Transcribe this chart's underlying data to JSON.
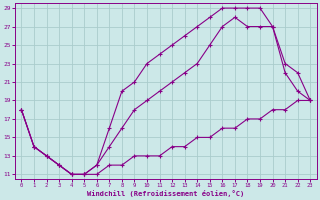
{
  "title": "",
  "xlabel": "Windchill (Refroidissement éolien,°C)",
  "ylabel": "",
  "bg_color": "#cce8e8",
  "grid_color": "#aacccc",
  "line_color": "#880088",
  "xlim": [
    -0.5,
    23.5
  ],
  "ylim": [
    10.5,
    29.5
  ],
  "xticks": [
    0,
    1,
    2,
    3,
    4,
    5,
    6,
    7,
    8,
    9,
    10,
    11,
    12,
    13,
    14,
    15,
    16,
    17,
    18,
    19,
    20,
    21,
    22,
    23
  ],
  "yticks": [
    11,
    13,
    15,
    17,
    19,
    21,
    23,
    25,
    27,
    29
  ],
  "curve1_x": [
    0,
    1,
    2,
    3,
    4,
    5,
    6,
    7,
    8,
    9,
    10,
    11,
    12,
    13,
    14,
    15,
    16,
    17,
    18,
    19,
    20,
    21,
    22,
    23
  ],
  "curve1_y": [
    18,
    14,
    13,
    12,
    11,
    11,
    12,
    16,
    20,
    21,
    23,
    24,
    25,
    26,
    27,
    28,
    29,
    29,
    29,
    29,
    27,
    22,
    20,
    19
  ],
  "curve2_x": [
    0,
    1,
    2,
    3,
    4,
    5,
    6,
    7,
    8,
    9,
    10,
    11,
    12,
    13,
    14,
    15,
    16,
    17,
    18,
    19,
    20,
    21,
    22,
    23
  ],
  "curve2_y": [
    18,
    14,
    13,
    12,
    11,
    11,
    12,
    14,
    16,
    18,
    19,
    20,
    21,
    22,
    23,
    25,
    27,
    28,
    27,
    27,
    27,
    23,
    22,
    19
  ],
  "curve3_x": [
    0,
    1,
    2,
    3,
    4,
    5,
    6,
    7,
    8,
    9,
    10,
    11,
    12,
    13,
    14,
    15,
    16,
    17,
    18,
    19,
    20,
    21,
    22,
    23
  ],
  "curve3_y": [
    18,
    14,
    13,
    12,
    11,
    11,
    11,
    12,
    12,
    13,
    13,
    13,
    14,
    14,
    15,
    15,
    16,
    16,
    17,
    17,
    18,
    18,
    19,
    19
  ]
}
